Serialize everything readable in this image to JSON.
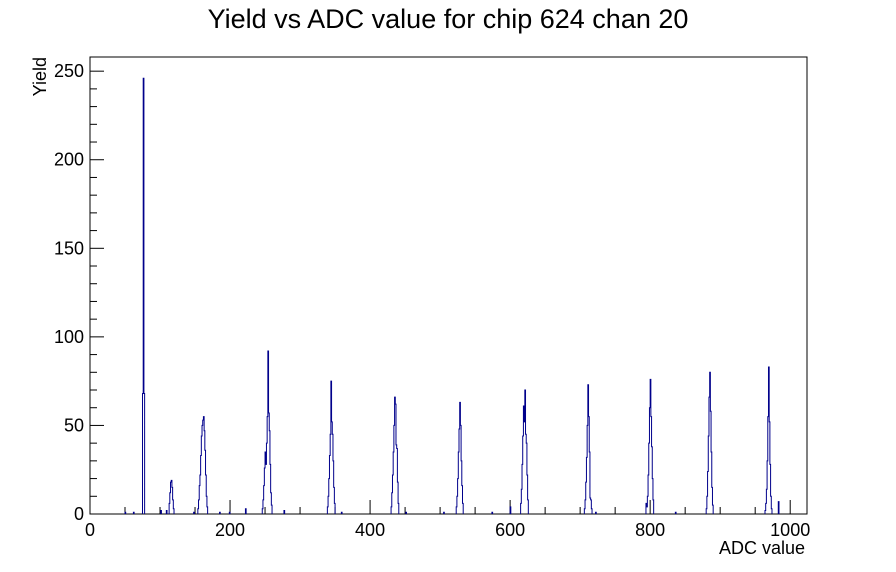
{
  "chart_data": {
    "type": "histogram",
    "title": "Yield vs ADC value for chip 624 chan 20",
    "xlabel": "ADC value",
    "ylabel": "Yield",
    "xlim": [
      0,
      1024
    ],
    "ylim": [
      0,
      258
    ],
    "x_ticks": [
      0,
      200,
      400,
      600,
      800,
      1000
    ],
    "y_ticks": [
      0,
      50,
      100,
      150,
      200,
      250
    ],
    "grid": false,
    "legend": "none",
    "line_color": "#00008b",
    "bins": [
      {
        "x": 50,
        "y": 1
      },
      {
        "x": 62,
        "y": 1
      },
      {
        "x": 75,
        "y": 68
      },
      {
        "x": 76,
        "y": 246
      },
      {
        "x": 77,
        "y": 68
      },
      {
        "x": 101,
        "y": 2
      },
      {
        "x": 109,
        "y": 2
      },
      {
        "x": 113,
        "y": 6
      },
      {
        "x": 114,
        "y": 12
      },
      {
        "x": 115,
        "y": 18
      },
      {
        "x": 116,
        "y": 19
      },
      {
        "x": 117,
        "y": 15
      },
      {
        "x": 118,
        "y": 8
      },
      {
        "x": 119,
        "y": 3
      },
      {
        "x": 148,
        "y": 1
      },
      {
        "x": 154,
        "y": 3
      },
      {
        "x": 155,
        "y": 8
      },
      {
        "x": 156,
        "y": 16
      },
      {
        "x": 157,
        "y": 22
      },
      {
        "x": 158,
        "y": 33
      },
      {
        "x": 159,
        "y": 44
      },
      {
        "x": 160,
        "y": 50
      },
      {
        "x": 161,
        "y": 53
      },
      {
        "x": 162,
        "y": 55
      },
      {
        "x": 163,
        "y": 47
      },
      {
        "x": 164,
        "y": 36
      },
      {
        "x": 165,
        "y": 22
      },
      {
        "x": 166,
        "y": 10
      },
      {
        "x": 167,
        "y": 4
      },
      {
        "x": 185,
        "y": 1
      },
      {
        "x": 199,
        "y": 1
      },
      {
        "x": 222,
        "y": 3
      },
      {
        "x": 246,
        "y": 3
      },
      {
        "x": 247,
        "y": 8
      },
      {
        "x": 248,
        "y": 16
      },
      {
        "x": 249,
        "y": 26
      },
      {
        "x": 250,
        "y": 35
      },
      {
        "x": 251,
        "y": 28
      },
      {
        "x": 252,
        "y": 40
      },
      {
        "x": 253,
        "y": 55
      },
      {
        "x": 254,
        "y": 92
      },
      {
        "x": 255,
        "y": 57
      },
      {
        "x": 256,
        "y": 47
      },
      {
        "x": 257,
        "y": 28
      },
      {
        "x": 258,
        "y": 12
      },
      {
        "x": 259,
        "y": 5
      },
      {
        "x": 277,
        "y": 2
      },
      {
        "x": 339,
        "y": 4
      },
      {
        "x": 340,
        "y": 10
      },
      {
        "x": 341,
        "y": 20
      },
      {
        "x": 342,
        "y": 33
      },
      {
        "x": 343,
        "y": 45
      },
      {
        "x": 344,
        "y": 75
      },
      {
        "x": 345,
        "y": 52
      },
      {
        "x": 346,
        "y": 45
      },
      {
        "x": 347,
        "y": 30
      },
      {
        "x": 348,
        "y": 15
      },
      {
        "x": 349,
        "y": 6
      },
      {
        "x": 359,
        "y": 1
      },
      {
        "x": 430,
        "y": 4
      },
      {
        "x": 431,
        "y": 12
      },
      {
        "x": 432,
        "y": 22
      },
      {
        "x": 433,
        "y": 35
      },
      {
        "x": 434,
        "y": 50
      },
      {
        "x": 435,
        "y": 66
      },
      {
        "x": 436,
        "y": 62
      },
      {
        "x": 437,
        "y": 39
      },
      {
        "x": 438,
        "y": 37
      },
      {
        "x": 439,
        "y": 18
      },
      {
        "x": 440,
        "y": 6
      },
      {
        "x": 451,
        "y": 1
      },
      {
        "x": 505,
        "y": 1
      },
      {
        "x": 523,
        "y": 4
      },
      {
        "x": 524,
        "y": 10
      },
      {
        "x": 525,
        "y": 20
      },
      {
        "x": 526,
        "y": 35
      },
      {
        "x": 527,
        "y": 48
      },
      {
        "x": 528,
        "y": 63
      },
      {
        "x": 529,
        "y": 50
      },
      {
        "x": 530,
        "y": 30
      },
      {
        "x": 531,
        "y": 16
      },
      {
        "x": 532,
        "y": 6
      },
      {
        "x": 574,
        "y": 1
      },
      {
        "x": 600,
        "y": 4
      },
      {
        "x": 615,
        "y": 6
      },
      {
        "x": 616,
        "y": 14
      },
      {
        "x": 617,
        "y": 28
      },
      {
        "x": 618,
        "y": 44
      },
      {
        "x": 619,
        "y": 61
      },
      {
        "x": 620,
        "y": 52
      },
      {
        "x": 621,
        "y": 70
      },
      {
        "x": 622,
        "y": 45
      },
      {
        "x": 623,
        "y": 40
      },
      {
        "x": 624,
        "y": 22
      },
      {
        "x": 625,
        "y": 8
      },
      {
        "x": 706,
        "y": 3
      },
      {
        "x": 707,
        "y": 8
      },
      {
        "x": 708,
        "y": 18
      },
      {
        "x": 709,
        "y": 32
      },
      {
        "x": 710,
        "y": 50
      },
      {
        "x": 711,
        "y": 73
      },
      {
        "x": 712,
        "y": 55
      },
      {
        "x": 713,
        "y": 35
      },
      {
        "x": 714,
        "y": 9
      },
      {
        "x": 715,
        "y": 8
      },
      {
        "x": 716,
        "y": 3
      },
      {
        "x": 722,
        "y": 1
      },
      {
        "x": 794,
        "y": 6
      },
      {
        "x": 795,
        "y": 4
      },
      {
        "x": 796,
        "y": 10
      },
      {
        "x": 797,
        "y": 22
      },
      {
        "x": 798,
        "y": 40
      },
      {
        "x": 799,
        "y": 60
      },
      {
        "x": 800,
        "y": 76
      },
      {
        "x": 801,
        "y": 55
      },
      {
        "x": 802,
        "y": 38
      },
      {
        "x": 803,
        "y": 20
      },
      {
        "x": 804,
        "y": 8
      },
      {
        "x": 836,
        "y": 1
      },
      {
        "x": 880,
        "y": 3
      },
      {
        "x": 881,
        "y": 10
      },
      {
        "x": 882,
        "y": 24
      },
      {
        "x": 883,
        "y": 44
      },
      {
        "x": 884,
        "y": 66
      },
      {
        "x": 885,
        "y": 80
      },
      {
        "x": 886,
        "y": 58
      },
      {
        "x": 887,
        "y": 35
      },
      {
        "x": 888,
        "y": 15
      },
      {
        "x": 889,
        "y": 5
      },
      {
        "x": 964,
        "y": 2
      },
      {
        "x": 965,
        "y": 6
      },
      {
        "x": 966,
        "y": 14
      },
      {
        "x": 967,
        "y": 30
      },
      {
        "x": 968,
        "y": 55
      },
      {
        "x": 969,
        "y": 83
      },
      {
        "x": 970,
        "y": 52
      },
      {
        "x": 971,
        "y": 28
      },
      {
        "x": 972,
        "y": 10
      },
      {
        "x": 973,
        "y": 3
      },
      {
        "x": 983,
        "y": 7
      }
    ]
  }
}
